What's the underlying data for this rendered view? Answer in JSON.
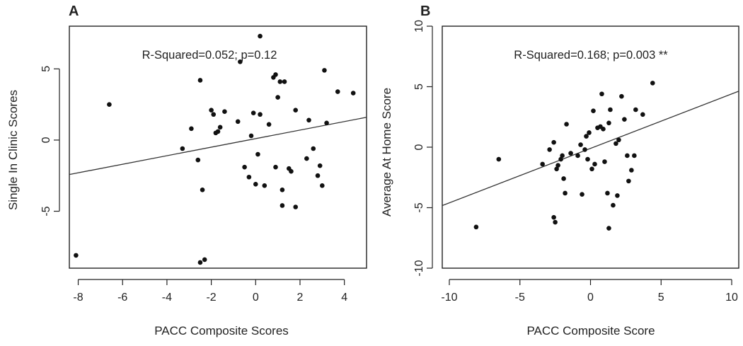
{
  "chart_data": [
    {
      "panel": "A",
      "type": "scatter",
      "xlabel": "PACC Composite Scores",
      "ylabel": "Single In Clinic Scores",
      "xlim": [
        -8.4,
        5.0
      ],
      "ylim": [
        -9.0,
        8.0
      ],
      "xticks": [
        -8,
        -6,
        -4,
        -2,
        0,
        2,
        4
      ],
      "yticks": [
        -5,
        0,
        5
      ],
      "annotation": "R-Squared=0.052; p=0.12",
      "fit_line": {
        "intercept": 0.1,
        "slope": 0.3
      },
      "points": [
        [
          -8.1,
          -8.1
        ],
        [
          -6.6,
          2.5
        ],
        [
          -3.3,
          -0.6
        ],
        [
          -2.9,
          0.8
        ],
        [
          -2.6,
          -1.4
        ],
        [
          -2.5,
          4.2
        ],
        [
          -2.4,
          -3.5
        ],
        [
          -2.3,
          -8.4
        ],
        [
          -2.5,
          -8.6
        ],
        [
          -2.0,
          2.1
        ],
        [
          -1.9,
          1.8
        ],
        [
          -1.8,
          0.5
        ],
        [
          -1.7,
          0.6
        ],
        [
          -1.6,
          0.9
        ],
        [
          -1.4,
          2.0
        ],
        [
          -0.8,
          1.3
        ],
        [
          -0.7,
          5.5
        ],
        [
          -0.5,
          -1.9
        ],
        [
          -0.3,
          -2.6
        ],
        [
          -0.2,
          0.3
        ],
        [
          -0.1,
          1.9
        ],
        [
          0.0,
          -3.1
        ],
        [
          0.1,
          -1.0
        ],
        [
          0.2,
          1.8
        ],
        [
          0.2,
          7.3
        ],
        [
          0.4,
          -3.2
        ],
        [
          0.6,
          1.1
        ],
        [
          0.8,
          4.4
        ],
        [
          0.9,
          4.6
        ],
        [
          0.9,
          -1.9
        ],
        [
          1.0,
          3.0
        ],
        [
          1.1,
          4.1
        ],
        [
          1.2,
          -4.6
        ],
        [
          1.2,
          -3.5
        ],
        [
          1.3,
          4.1
        ],
        [
          1.5,
          -2.0
        ],
        [
          1.6,
          -2.2
        ],
        [
          1.8,
          -4.7
        ],
        [
          1.8,
          2.1
        ],
        [
          2.3,
          -1.3
        ],
        [
          2.4,
          1.4
        ],
        [
          2.6,
          -0.6
        ],
        [
          2.8,
          -2.5
        ],
        [
          2.9,
          -1.8
        ],
        [
          3.0,
          -3.2
        ],
        [
          3.2,
          1.2
        ],
        [
          3.1,
          4.9
        ],
        [
          3.7,
          3.4
        ],
        [
          4.4,
          3.3
        ]
      ]
    },
    {
      "panel": "B",
      "type": "scatter",
      "xlabel": "PACC Composite Score",
      "ylabel": "Average At Home Score",
      "xlim": [
        -10.5,
        10.5
      ],
      "ylim": [
        -10.0,
        10.0
      ],
      "xticks": [
        -10,
        -5,
        0,
        5,
        10
      ],
      "yticks": [
        -10,
        -5,
        0,
        5,
        10
      ],
      "annotation": "R-Squared=0.168; p=0.003 **",
      "fit_line": {
        "intercept": -0.1,
        "slope": 0.45
      },
      "points": [
        [
          -8.1,
          -6.6
        ],
        [
          -6.5,
          -1.0
        ],
        [
          -3.4,
          -1.4
        ],
        [
          -2.9,
          -0.2
        ],
        [
          -2.6,
          0.4
        ],
        [
          -2.4,
          -1.8
        ],
        [
          -2.3,
          -1.5
        ],
        [
          -2.1,
          -1.0
        ],
        [
          -2.0,
          -0.7
        ],
        [
          -1.9,
          -2.6
        ],
        [
          -2.6,
          -5.8
        ],
        [
          -2.5,
          -6.2
        ],
        [
          -1.8,
          -3.8
        ],
        [
          -1.7,
          1.9
        ],
        [
          -1.4,
          -0.5
        ],
        [
          -0.9,
          -0.7
        ],
        [
          -0.7,
          0.2
        ],
        [
          -0.6,
          -3.9
        ],
        [
          -0.4,
          -0.2
        ],
        [
          -0.3,
          0.9
        ],
        [
          -0.2,
          -1.0
        ],
        [
          -0.1,
          1.2
        ],
        [
          0.1,
          -1.8
        ],
        [
          0.2,
          3.0
        ],
        [
          0.3,
          -1.4
        ],
        [
          0.5,
          1.6
        ],
        [
          0.7,
          1.7
        ],
        [
          0.8,
          4.4
        ],
        [
          0.9,
          1.5
        ],
        [
          1.0,
          -1.2
        ],
        [
          1.2,
          -3.8
        ],
        [
          1.3,
          2.0
        ],
        [
          1.4,
          3.1
        ],
        [
          1.3,
          -6.7
        ],
        [
          1.6,
          -4.8
        ],
        [
          1.8,
          0.3
        ],
        [
          1.9,
          -4.0
        ],
        [
          2.0,
          0.6
        ],
        [
          2.2,
          4.2
        ],
        [
          2.4,
          2.3
        ],
        [
          2.6,
          -0.7
        ],
        [
          2.7,
          -2.8
        ],
        [
          2.9,
          -1.9
        ],
        [
          3.1,
          -0.7
        ],
        [
          3.2,
          3.1
        ],
        [
          3.7,
          2.7
        ],
        [
          4.4,
          5.3
        ]
      ]
    }
  ]
}
